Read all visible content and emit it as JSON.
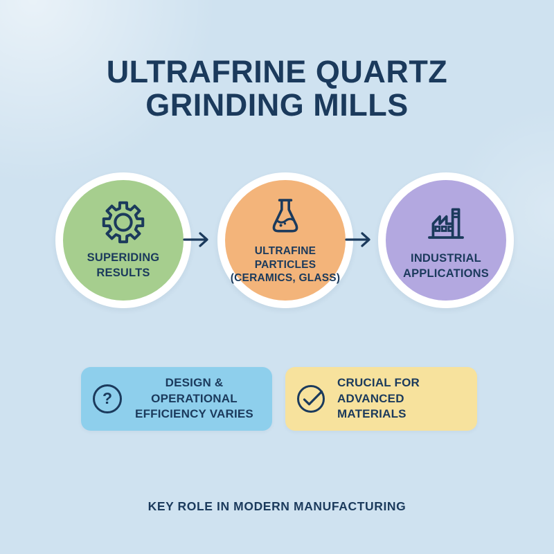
{
  "colors": {
    "background": "#cfe2f0",
    "ink": "#1b3a5c",
    "ring": "#ffffff",
    "green": "#a6ce8e",
    "orange": "#f3b47a",
    "purple": "#b3a8e0",
    "blue_box": "#8ecfec",
    "yellow_box": "#f7e29d"
  },
  "title": {
    "line1": "ULTRAFRINE QUARTZ",
    "line2": "GRINDING MILLS"
  },
  "flow": {
    "arrow_icon": "arrow-right-icon",
    "steps": [
      {
        "icon": "gear-icon",
        "lines": [
          "SUPERIDING",
          "RESULTS"
        ]
      },
      {
        "icon": "flask-icon",
        "lines": [
          "ULTRAFINE",
          "PARTICLES",
          "(CERAMICS, GLASS)"
        ]
      },
      {
        "icon": "factory-icon",
        "lines": [
          "INDUSTRIAL",
          "APPLICATIONS"
        ]
      }
    ]
  },
  "callouts": [
    {
      "icon": "question-circle-icon",
      "glyph": "?",
      "lines": [
        "DESIGN & OPERATIONAL",
        "EFFICIENCY VARIES"
      ]
    },
    {
      "icon": "check-circle-icon",
      "lines": [
        "CRUCIAL FOR",
        "ADVANCED MATERIALS"
      ]
    }
  ],
  "footer": "KEY ROLE IN MODERN MANUFACTURING"
}
